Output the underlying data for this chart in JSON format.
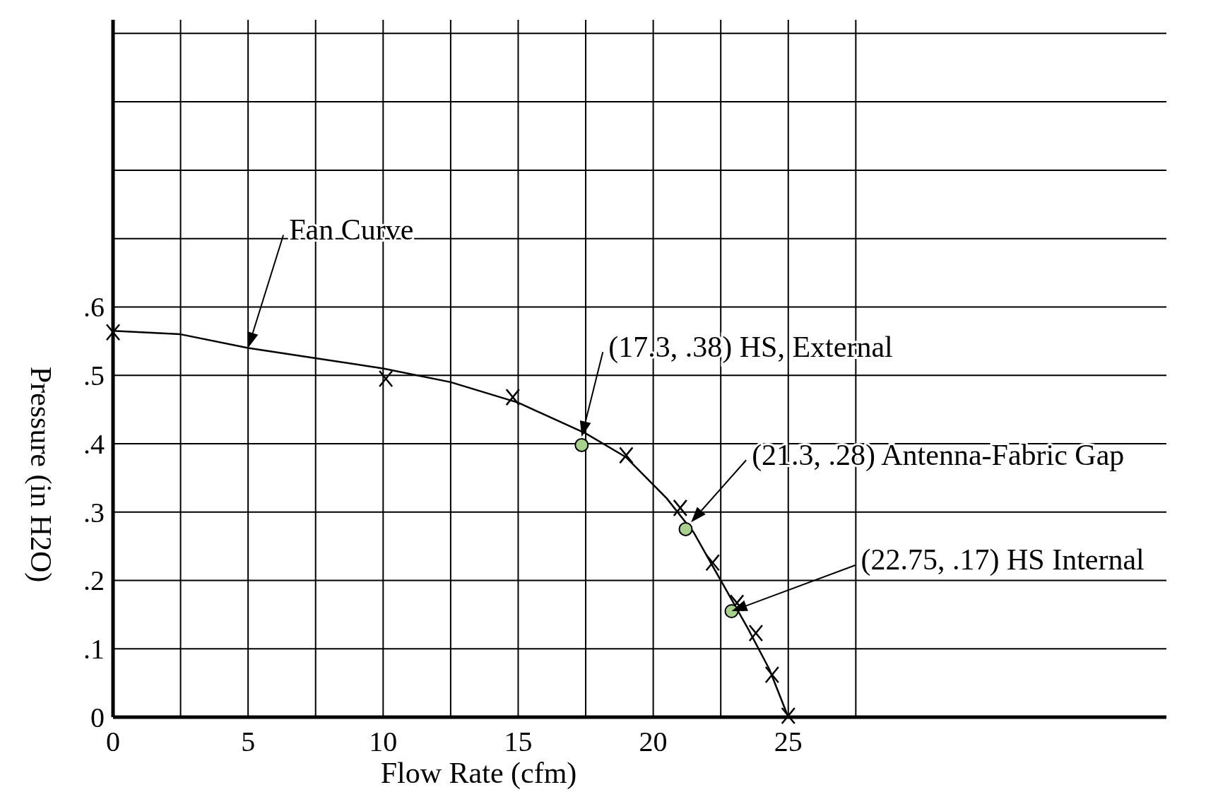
{
  "chart_data": {
    "type": "line",
    "xlabel": "Flow Rate (cfm)",
    "ylabel": "Pressure (in H2O)",
    "xlim": [
      0,
      39
    ],
    "ylim": [
      0,
      1.02
    ],
    "xticks": [
      0,
      {
        "value": 2.5,
        "label": null
      },
      5,
      {
        "value": 7.5,
        "label": null
      },
      10,
      {
        "value": 12.5,
        "label": null
      },
      15,
      {
        "value": 17.5,
        "label": null
      },
      20,
      {
        "value": 22.5,
        "label": null
      },
      25,
      {
        "value": 27.5,
        "label": null
      }
    ],
    "yticks": [
      0,
      {
        "value": 0.1,
        "label": ".1"
      },
      {
        "value": 0.2,
        "label": ".2"
      },
      {
        "value": 0.3,
        "label": ".3"
      },
      {
        "value": 0.4,
        "label": ".4"
      },
      {
        "value": 0.5,
        "label": ".5"
      },
      {
        "value": 0.6,
        "label": ".6"
      },
      {
        "value": 0.7,
        "label": null
      },
      {
        "value": 0.8,
        "label": null
      },
      {
        "value": 0.9,
        "label": null
      },
      {
        "value": 1.0,
        "label": null
      }
    ],
    "grid": true,
    "line_style": "solid",
    "series": [
      {
        "color": "#000000",
        "x": [
          0,
          2.5,
          5,
          7.5,
          10,
          12.5,
          15,
          17.5,
          19,
          20.5,
          21.5,
          22.5,
          23.5,
          24.3,
          25
        ],
        "values": [
          0.565,
          0.56,
          0.54,
          0.525,
          0.51,
          0.49,
          0.46,
          0.415,
          0.38,
          0.32,
          0.27,
          0.2,
          0.13,
          0.07,
          0
        ]
      },
      {
        "type": "scatter",
        "color": "#000000",
        "marker": "cross",
        "x": [
          0,
          10.1,
          14.8,
          19,
          21,
          22.2,
          23.1,
          23.8,
          24.4,
          25
        ],
        "values": [
          0.563,
          0.495,
          0.468,
          0.383,
          0.306,
          0.226,
          0.167,
          0.123,
          0.062,
          0.002
        ]
      },
      {
        "type": "scatter",
        "color": "#a9d18e",
        "marker": "circle",
        "x": [
          17.35,
          21.2,
          22.9
        ],
        "values": [
          0.398,
          0.275,
          0.155
        ]
      }
    ],
    "annotations": [
      "Fan Curve",
      {
        "text": "(17.3, .38) HS, External",
        "x": 17.35,
        "y": 0.41
      },
      {
        "text": "(21.3, .28) Antenna-Fabric Gap",
        "x": 21.4,
        "y": 0.285
      },
      "(22.75, .17) HS Internal"
    ]
  }
}
